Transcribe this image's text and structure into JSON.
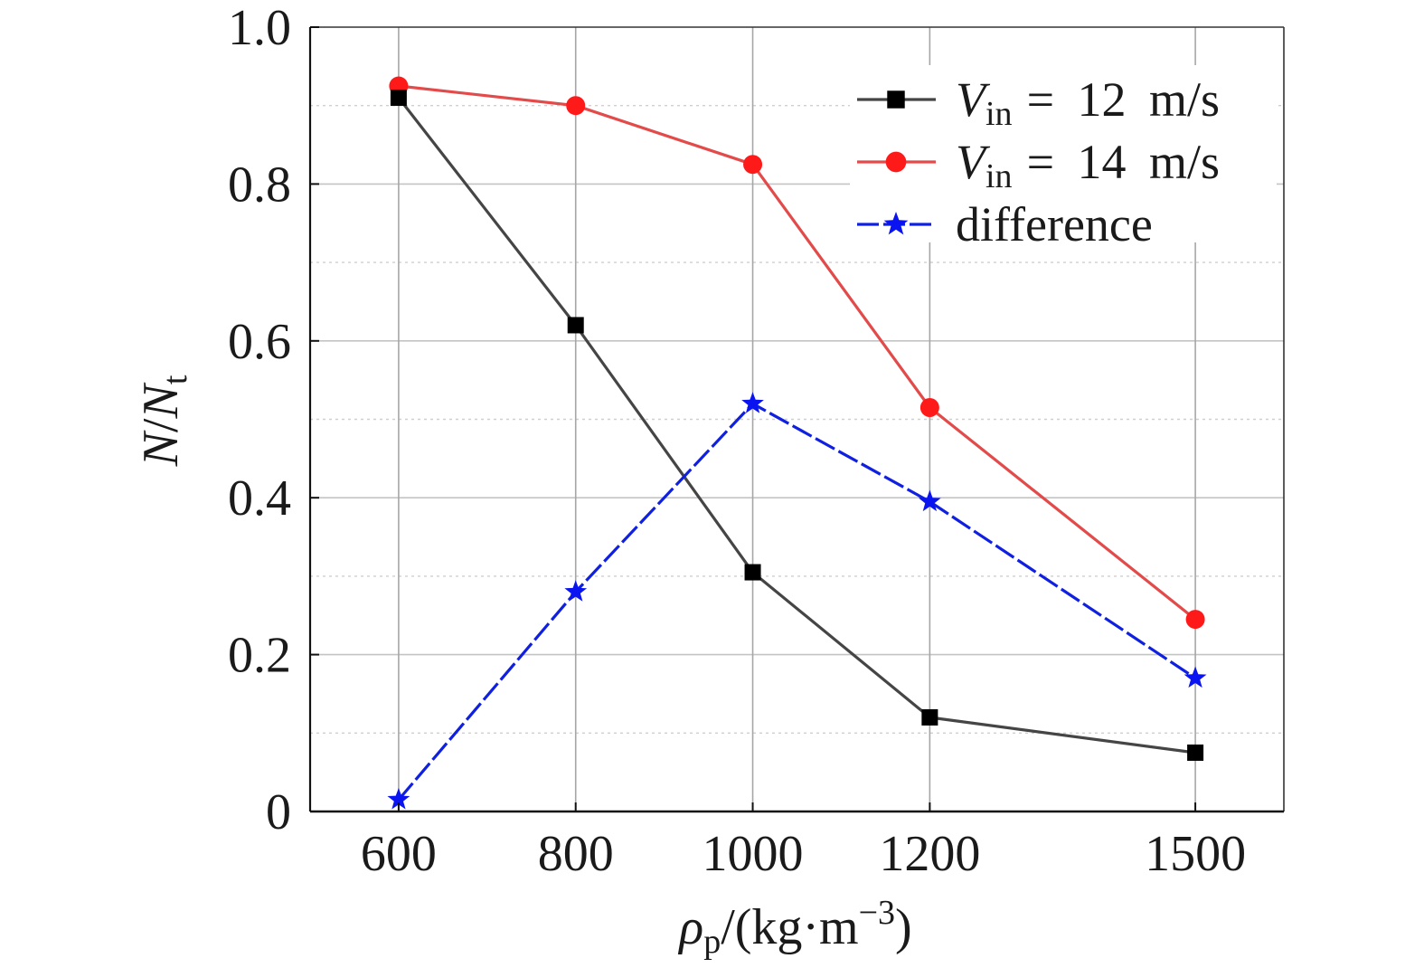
{
  "chart_data": {
    "type": "line",
    "x": [
      600,
      800,
      1000,
      1200,
      1500
    ],
    "xlim": [
      500,
      1600
    ],
    "ylim": [
      0,
      1.0
    ],
    "xticks": [
      600,
      800,
      1000,
      1200,
      1500
    ],
    "xticklabels": [
      "600",
      "800",
      "1000",
      "1200",
      "1500"
    ],
    "yticks": [
      0,
      0.2,
      0.4,
      0.6,
      0.8,
      1.0
    ],
    "yticklabels": [
      "0",
      "0.2",
      "0.4",
      "0.6",
      "0.8",
      "1.0"
    ],
    "xlabel": {
      "base": "ρ",
      "sub": "p",
      "mid": "/(kg·m",
      "sup": "−3",
      "end": ")"
    },
    "ylabel": {
      "num": "N",
      "slash": "/",
      "den": "N",
      "sub": "t"
    },
    "grid": true,
    "legend_position": "top-right",
    "series": [
      {
        "name": {
          "base": "V",
          "sub": "in",
          "rest": "= 12 m/s"
        },
        "marker": "square",
        "marker_color": "#000000",
        "line_color": "#454545",
        "line_style": "solid",
        "values": [
          0.91,
          0.62,
          0.305,
          0.12,
          0.075
        ]
      },
      {
        "name": {
          "base": "V",
          "sub": "in",
          "rest": "= 14 m/s"
        },
        "marker": "circle",
        "marker_color": "#ff1a1a",
        "line_color": "#e34a4a",
        "line_style": "solid",
        "values": [
          0.925,
          0.9,
          0.825,
          0.515,
          0.245
        ]
      },
      {
        "name": {
          "base": "difference"
        },
        "marker": "star",
        "marker_color": "#0a14f0",
        "line_color": "#1020e0",
        "line_style": "dashed",
        "values": [
          0.015,
          0.28,
          0.52,
          0.395,
          0.17
        ]
      }
    ]
  }
}
